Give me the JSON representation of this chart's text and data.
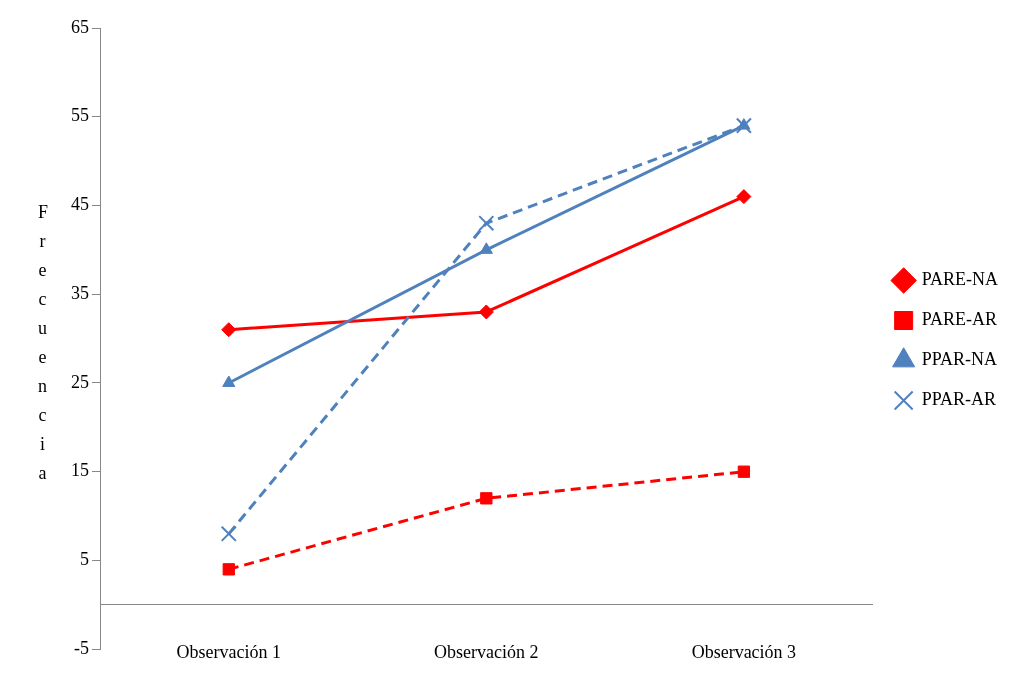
{
  "chart_data": {
    "type": "line",
    "ylabel": "Frecuencia",
    "categories": [
      "Observación 1",
      "Observación 2",
      "Observación 3"
    ],
    "series": [
      {
        "name": "PARE-NA",
        "color": "#ff0000",
        "values": [
          31,
          33,
          46
        ],
        "marker": "diamond",
        "line_style": "solid"
      },
      {
        "name": "PARE-AR",
        "color": "#ff0000",
        "values": [
          4,
          12,
          15
        ],
        "marker": "square",
        "line_style": "dashed"
      },
      {
        "name": "PPAR-NA",
        "color": "#4f81bd",
        "values": [
          25,
          40,
          54
        ],
        "marker": "triangle",
        "line_style": "solid"
      },
      {
        "name": "PPAR-AR",
        "color": "#4f81bd",
        "values": [
          8,
          43,
          54
        ],
        "marker": "cross",
        "line_style": "dashed"
      }
    ],
    "ylim": [
      -5,
      65
    ],
    "yticks": [
      -5,
      5,
      15,
      25,
      35,
      45,
      55,
      65
    ],
    "grid": false,
    "legend": "right"
  }
}
